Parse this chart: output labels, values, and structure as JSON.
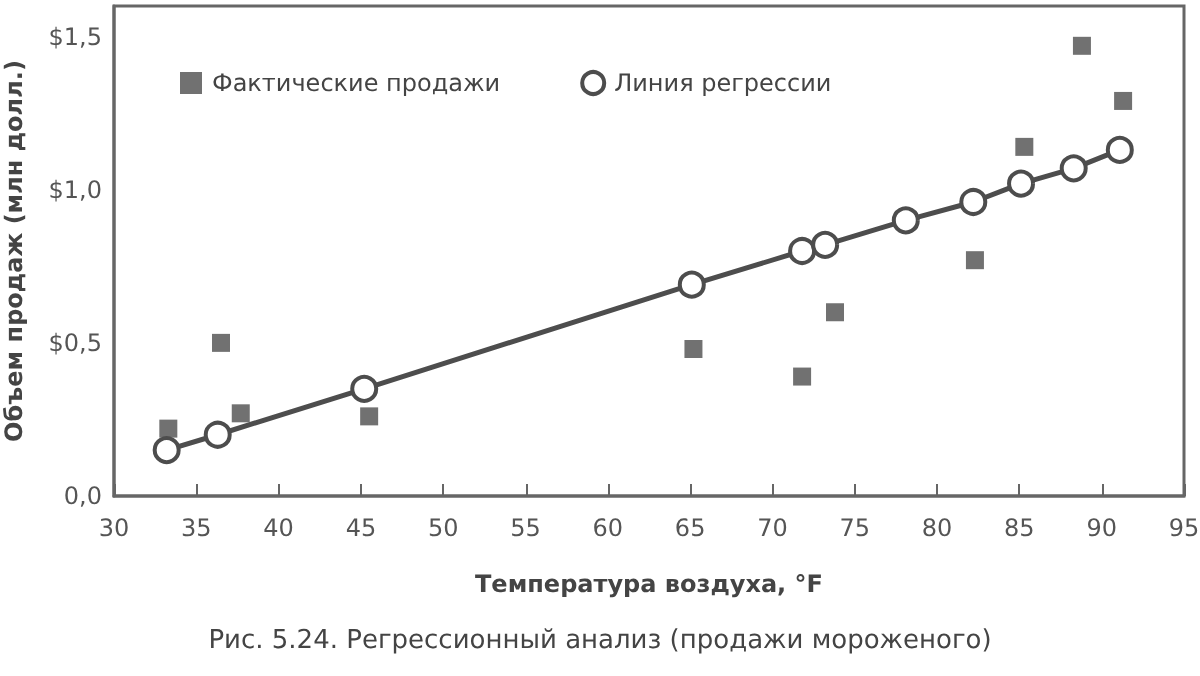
{
  "chart_data": {
    "type": "scatter",
    "xlabel": "Температура воздуха, °F",
    "ylabel": "Объем продаж (млн долл.)",
    "annotations": [
      "Рис. 5.24. Регрессионный анализ (продажи мороженого)"
    ],
    "series": [
      {
        "name": "Фактические продажи",
        "marker": "square",
        "color": "#4d4d4d",
        "x": [
          33.3,
          36.5,
          37.7,
          45.5,
          65.2,
          71.8,
          73.8,
          82.3,
          85.3,
          88.8,
          91.3
        ],
        "values": [
          0.22,
          0.5,
          0.27,
          0.26,
          0.48,
          0.39,
          0.6,
          0.77,
          1.14,
          1.47,
          1.29
        ]
      },
      {
        "name": "Линия регрессии",
        "type": "line",
        "marker": "circle",
        "color": "#4d4d4d",
        "x": [
          33.2,
          36.3,
          45.2,
          65.1,
          71.8,
          73.2,
          78.1,
          82.2,
          85.1,
          88.3,
          91.1
        ],
        "values": [
          0.15,
          0.2,
          0.35,
          0.69,
          0.8,
          0.82,
          0.9,
          0.96,
          1.02,
          1.07,
          1.13
        ]
      }
    ],
    "xlim": [
      30,
      95
    ],
    "xticks": [
      30,
      35,
      40,
      45,
      50,
      55,
      60,
      65,
      70,
      75,
      80,
      85,
      90,
      95
    ],
    "ylim": [
      0,
      1.6
    ],
    "yticks": [
      {
        "value": 0,
        "label": "0,0"
      },
      {
        "value": 0.5,
        "label": "$0,5"
      },
      {
        "value": 1,
        "label": "$1,0"
      },
      {
        "value": 1.5,
        "label": "$1,5"
      }
    ],
    "grid": false,
    "legend": "top left"
  }
}
